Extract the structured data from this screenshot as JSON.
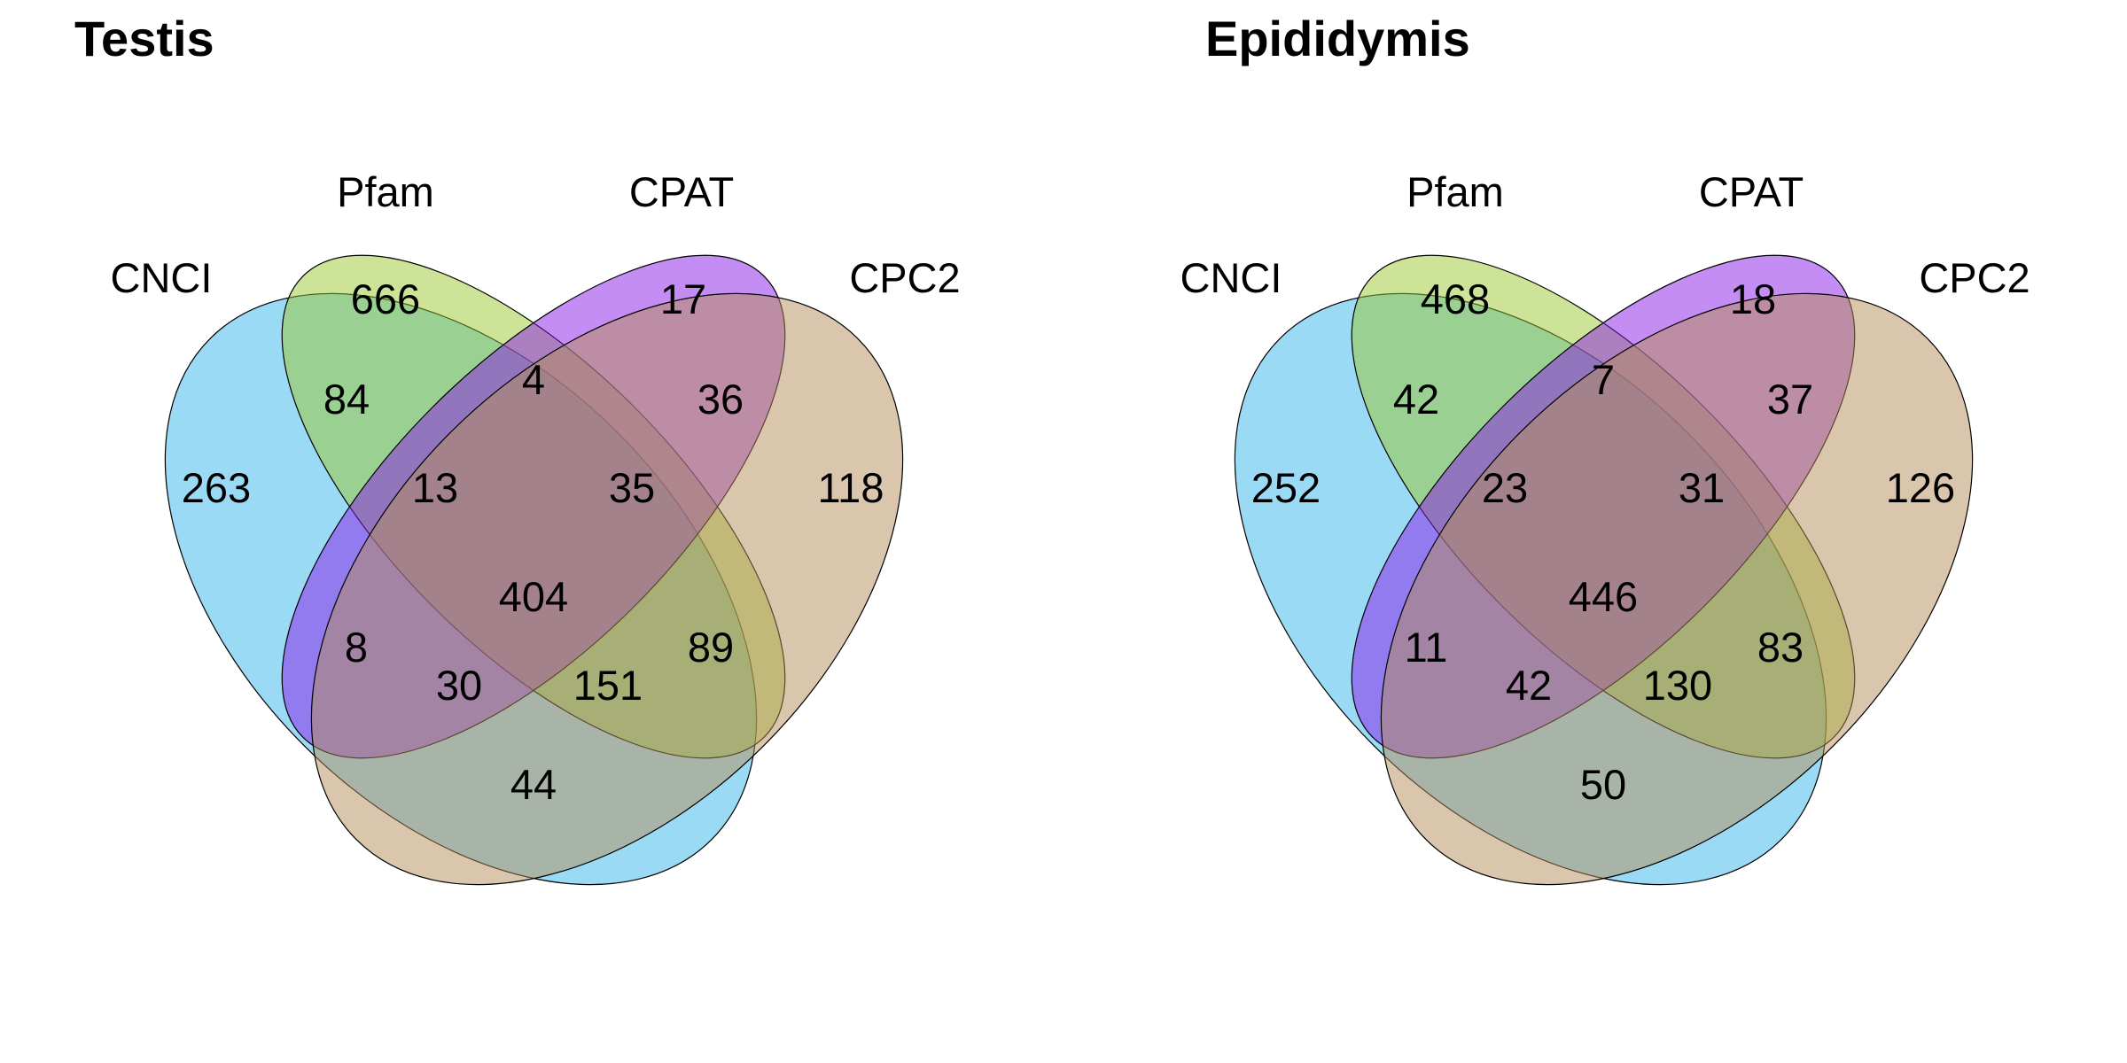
{
  "colors": {
    "CNCI": "#38b5ea",
    "Pfam": "#99c832",
    "CPAT": "#8a1be7",
    "CPC2": "#b68d59"
  },
  "panels": [
    {
      "title": "Testis",
      "set_labels": {
        "CNCI": "CNCI",
        "Pfam": "Pfam",
        "CPAT": "CPAT",
        "CPC2": "CPC2"
      },
      "regions": {
        "CNCI_only": "263",
        "Pfam_only": "666",
        "CPAT_only": "17",
        "CPC2_only": "118",
        "CNCI_Pfam": "84",
        "Pfam_CPAT": "4",
        "CPAT_CPC2": "36",
        "CNCI_Pfam_CPAT": "13",
        "Pfam_CPAT_CPC2": "35",
        "CNCI_CPAT": "8",
        "all_four": "404",
        "Pfam_CPC2": "89",
        "CNCI_CPAT_CPC2": "30",
        "CNCI_Pfam_CPC2": "151",
        "CNCI_CPC2": "44"
      }
    },
    {
      "title": "Epididymis",
      "set_labels": {
        "CNCI": "CNCI",
        "Pfam": "Pfam",
        "CPAT": "CPAT",
        "CPC2": "CPC2"
      },
      "regions": {
        "CNCI_only": "252",
        "Pfam_only": "468",
        "CPAT_only": "18",
        "CPC2_only": "126",
        "CNCI_Pfam": "42",
        "Pfam_CPAT": "7",
        "CPAT_CPC2": "37",
        "CNCI_Pfam_CPAT": "23",
        "Pfam_CPAT_CPC2": "31",
        "CNCI_CPAT": "11",
        "all_four": "446",
        "Pfam_CPC2": "83",
        "CNCI_CPAT_CPC2": "42",
        "CNCI_Pfam_CPC2": "130",
        "CNCI_CPC2": "50"
      }
    }
  ]
}
